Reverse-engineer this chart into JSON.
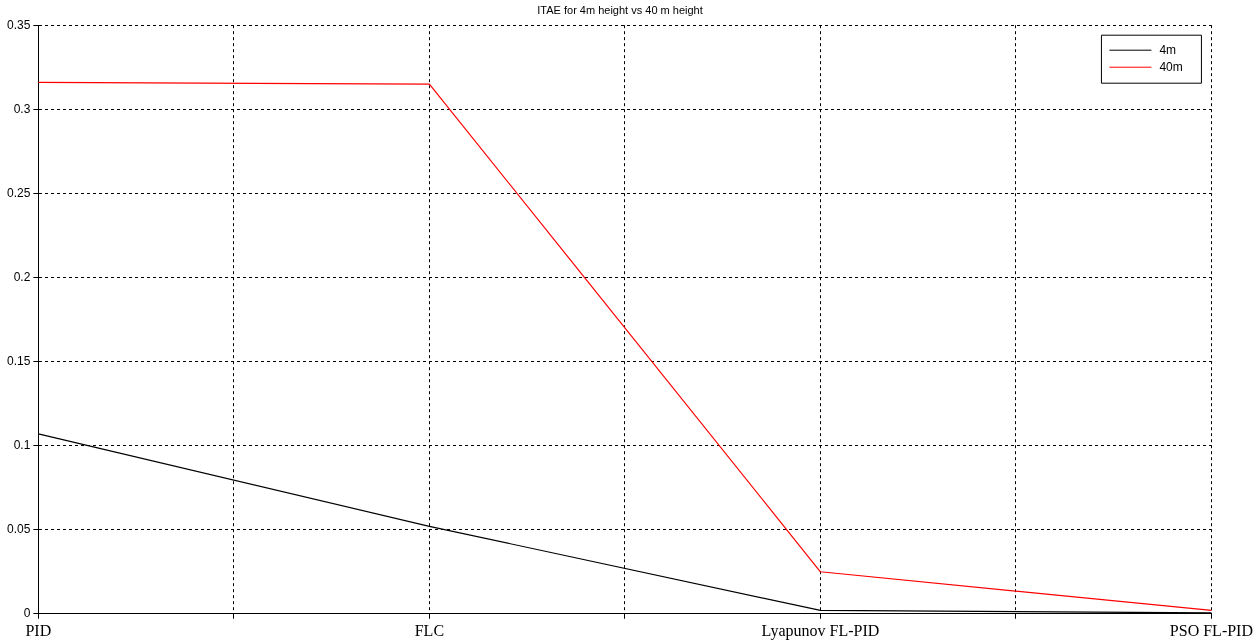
{
  "chart_data": {
    "type": "line",
    "title": "ITAE for 4m height vs 40 m height",
    "categories": [
      "PID",
      null,
      "FLC",
      null,
      "Lyapunov FL-PID",
      null,
      "PSO FL-PID"
    ],
    "series": [
      {
        "name": "4m",
        "color": "#000000",
        "values": [
          0.107,
          null,
          0.052,
          null,
          0.002,
          null,
          0.0005
        ]
      },
      {
        "name": "40m",
        "color": "#ff0000",
        "values": [
          0.316,
          null,
          0.315,
          null,
          0.025,
          null,
          0.002
        ]
      }
    ],
    "ylim": [
      0,
      0.35
    ],
    "yticks": [
      0,
      0.05,
      0.1,
      0.15,
      0.2,
      0.25,
      0.3,
      0.35
    ],
    "grid": true,
    "legend": "top right",
    "marker": "none",
    "line_style": "solid"
  }
}
